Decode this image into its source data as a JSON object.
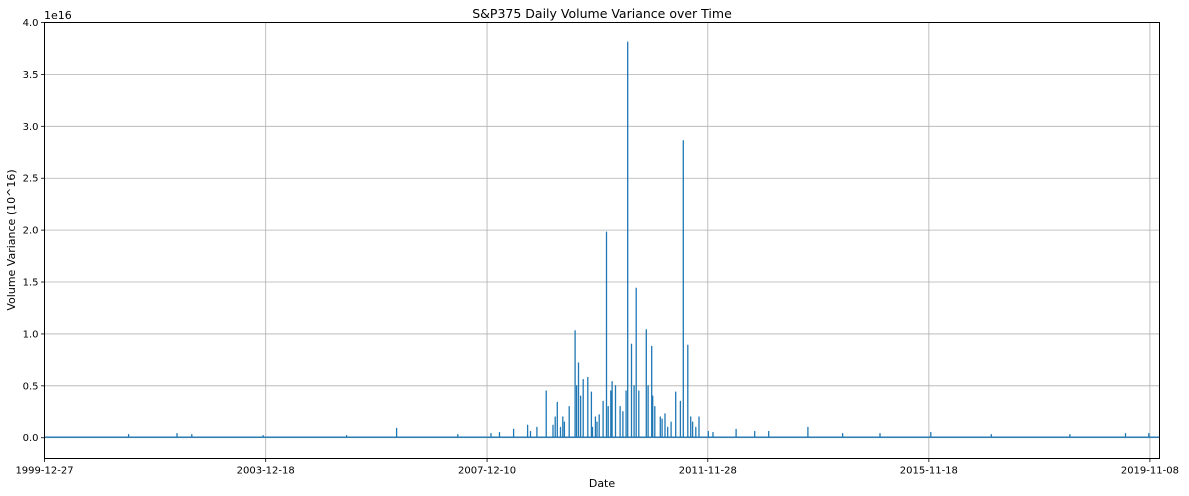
{
  "chart_data": {
    "type": "line",
    "title": "S&P375 Daily Volume Variance over Time",
    "xlabel": "Date",
    "ylabel": "Volume Variance (10^16)",
    "y_offset_text": "1e16",
    "y_multiplier": 1e+16,
    "xlim": [
      "1999-12-27",
      "2020-01-10"
    ],
    "ylim": [
      -0.2,
      4.0
    ],
    "yticks": [
      0.0,
      0.5,
      1.0,
      1.5,
      2.0,
      2.5,
      3.0,
      3.5,
      4.0
    ],
    "ytick_labels": [
      "0.0",
      "0.5",
      "1.0",
      "1.5",
      "2.0",
      "2.5",
      "3.0",
      "3.5",
      "4.0"
    ],
    "xticks": [
      "1999-12-27",
      "2003-12-18",
      "2007-12-10",
      "2011-11-28",
      "2015-11-18",
      "2019-11-08"
    ],
    "grid": true,
    "line_color": "#1f77b4",
    "baseline": 0.005,
    "series": [
      {
        "x": [
          "2001-07-01",
          "2002-05-15",
          "2002-08-20",
          "2003-12-01",
          "2005-06-01",
          "2006-04-25",
          "2007-06-01",
          "2008-01-05",
          "2008-03-01",
          "2008-06-01",
          "2008-09-01",
          "2008-09-20",
          "2008-11-01",
          "2009-01-01",
          "2009-02-15",
          "2009-03-01",
          "2009-03-15",
          "2009-04-05",
          "2009-04-20",
          "2009-05-01",
          "2009-06-01",
          "2009-07-10",
          "2009-07-20",
          "2009-08-01",
          "2009-08-15",
          "2009-09-01",
          "2009-10-01",
          "2009-10-25",
          "2009-11-01",
          "2009-11-20",
          "2009-12-01",
          "2009-12-15",
          "2010-01-10",
          "2010-02-01",
          "2010-02-12",
          "2010-03-01",
          "2010-03-10",
          "2010-04-01",
          "2010-05-01",
          "2010-05-20",
          "2010-06-10",
          "2010-06-20",
          "2010-07-15",
          "2010-08-01",
          "2010-08-15",
          "2010-09-01",
          "2010-10-20",
          "2010-11-01",
          "2010-11-25",
          "2010-12-01",
          "2010-12-15",
          "2011-01-20",
          "2011-02-01",
          "2011-02-20",
          "2011-03-10",
          "2011-04-01",
          "2011-05-01",
          "2011-06-01",
          "2011-06-20",
          "2011-07-20",
          "2011-08-08",
          "2011-08-20",
          "2011-09-10",
          "2011-10-01",
          "2011-12-01",
          "2012-01-01",
          "2012-06-01",
          "2012-10-01",
          "2013-01-01",
          "2013-09-15",
          "2014-05-01",
          "2015-01-01",
          "2015-12-01",
          "2017-01-01",
          "2018-06-01",
          "2019-06-01",
          "2019-11-01"
        ],
        "values": [
          0.03,
          0.04,
          0.03,
          0.02,
          0.02,
          0.09,
          0.03,
          0.04,
          0.05,
          0.08,
          0.12,
          0.06,
          0.1,
          0.45,
          0.12,
          0.2,
          0.34,
          0.1,
          0.2,
          0.15,
          0.3,
          1.03,
          0.5,
          0.72,
          0.4,
          0.56,
          0.58,
          0.44,
          0.1,
          0.2,
          0.15,
          0.22,
          0.35,
          1.98,
          0.3,
          0.45,
          0.54,
          0.5,
          0.3,
          0.25,
          0.45,
          3.81,
          0.9,
          0.5,
          1.44,
          0.45,
          1.04,
          0.5,
          0.88,
          0.4,
          0.3,
          0.2,
          0.18,
          0.23,
          0.1,
          0.15,
          0.44,
          0.35,
          2.86,
          0.89,
          0.2,
          0.15,
          0.1,
          0.2,
          0.06,
          0.05,
          0.08,
          0.06,
          0.06,
          0.1,
          0.04,
          0.04,
          0.05,
          0.03,
          0.03,
          0.04,
          0.04
        ]
      }
    ]
  }
}
